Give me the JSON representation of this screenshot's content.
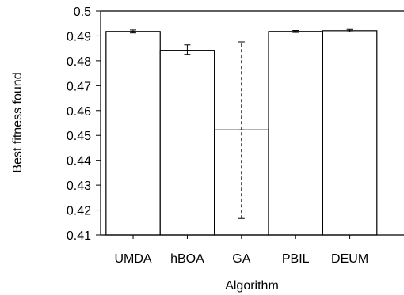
{
  "chart_data": {
    "type": "bar",
    "xlabel": "Algorithm",
    "ylabel": "Best fitness found",
    "categories": [
      "UMDA",
      "hBOA",
      "GA",
      "PBIL",
      "DEUM"
    ],
    "values": [
      0.4918,
      0.4842,
      0.4522,
      0.4918,
      0.4921
    ],
    "error_low": [
      0.4912,
      0.4826,
      0.4166,
      0.4914,
      0.4916
    ],
    "error_high": [
      0.4924,
      0.4864,
      0.4876,
      0.4922,
      0.4926
    ],
    "error_style": [
      "solid",
      "solid",
      "dashed",
      "solid",
      "solid"
    ],
    "ylim": [
      0.41,
      0.5
    ],
    "yticks": [
      "0.41",
      "0.42",
      "0.43",
      "0.44",
      "0.45",
      "0.46",
      "0.47",
      "0.48",
      "0.49",
      "0.5"
    ],
    "grid": false,
    "colors": {
      "bar_fill": "#ffffff",
      "stroke": "#000000"
    }
  }
}
